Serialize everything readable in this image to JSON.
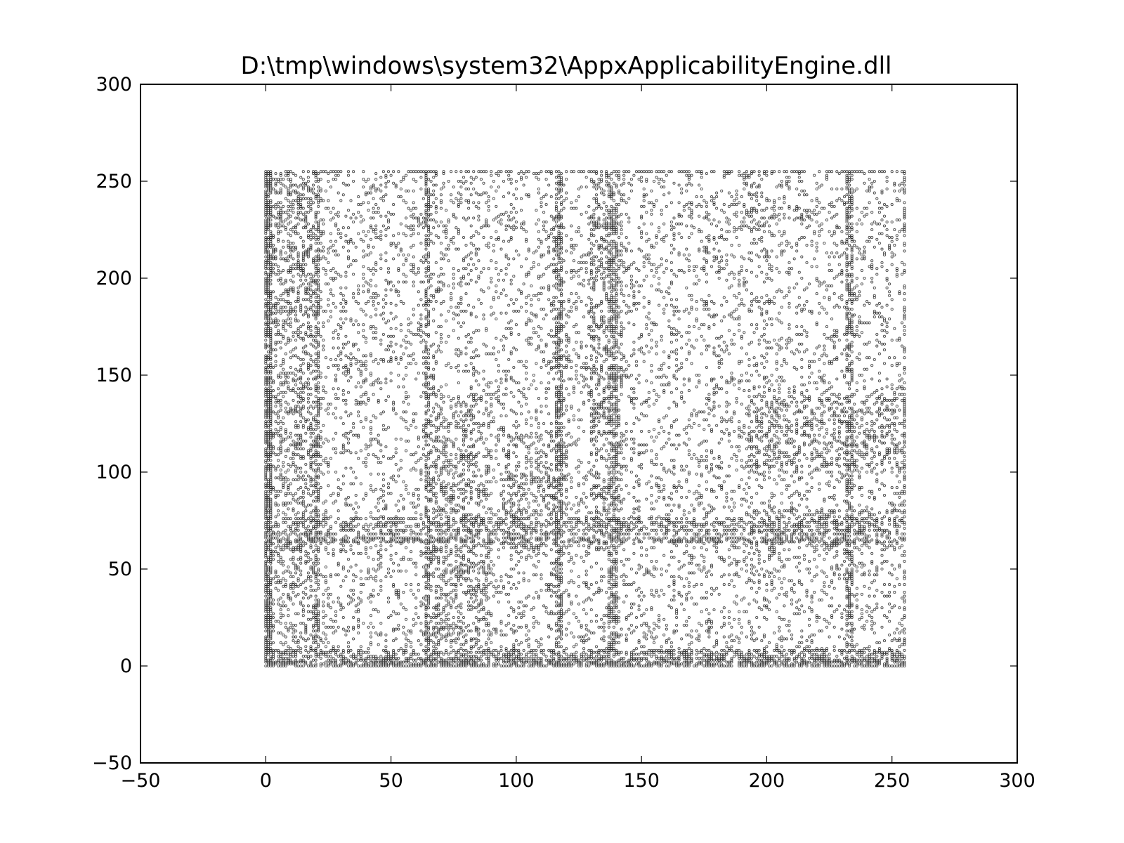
{
  "chart_data": {
    "type": "scatter",
    "title": "D:\\tmp\\windows\\system32\\AppxApplicabilityEngine.dll",
    "xlabel": "",
    "ylabel": "",
    "xlim": [
      -50,
      300
    ],
    "ylim": [
      -50,
      300
    ],
    "xticks": [
      -50,
      0,
      50,
      100,
      150,
      200,
      250,
      300
    ],
    "yticks": [
      -50,
      0,
      50,
      100,
      150,
      200,
      250,
      300
    ],
    "xtick_labels": [
      "−50",
      "0",
      "50",
      "100",
      "150",
      "200",
      "250",
      "300"
    ],
    "ytick_labels": [
      "−50",
      "0",
      "50",
      "100",
      "150",
      "200",
      "250",
      "300"
    ],
    "grid": false,
    "legend": "none",
    "point_color": "#000000",
    "data_extent": {
      "x": [
        0,
        255
      ],
      "y": [
        0,
        255
      ]
    },
    "dense_columns": [
      0,
      1,
      2,
      20,
      21,
      64,
      65,
      116,
      117,
      118,
      137,
      138,
      139,
      140,
      232,
      233,
      234,
      255
    ],
    "dense_rows": [
      0,
      1,
      2,
      3,
      4,
      5,
      6,
      7,
      8,
      64,
      65,
      66,
      68,
      70,
      72,
      73,
      74,
      76,
      255
    ],
    "cluster_regions": [
      {
        "x": [
          0,
          20
        ],
        "y": [
          0,
          255
        ]
      },
      {
        "x": [
          64,
          90
        ],
        "y": [
          0,
          140
        ]
      },
      {
        "x": [
          95,
          120
        ],
        "y": [
          60,
          120
        ]
      },
      {
        "x": [
          192,
          255
        ],
        "y": [
          60,
          80
        ]
      },
      {
        "x": [
          192,
          255
        ],
        "y": [
          100,
          140
        ]
      },
      {
        "x": [
          192,
          225
        ],
        "y": [
          228,
          236
        ]
      },
      {
        "x": [
          130,
          142
        ],
        "y": [
          60,
          255
        ]
      }
    ]
  }
}
